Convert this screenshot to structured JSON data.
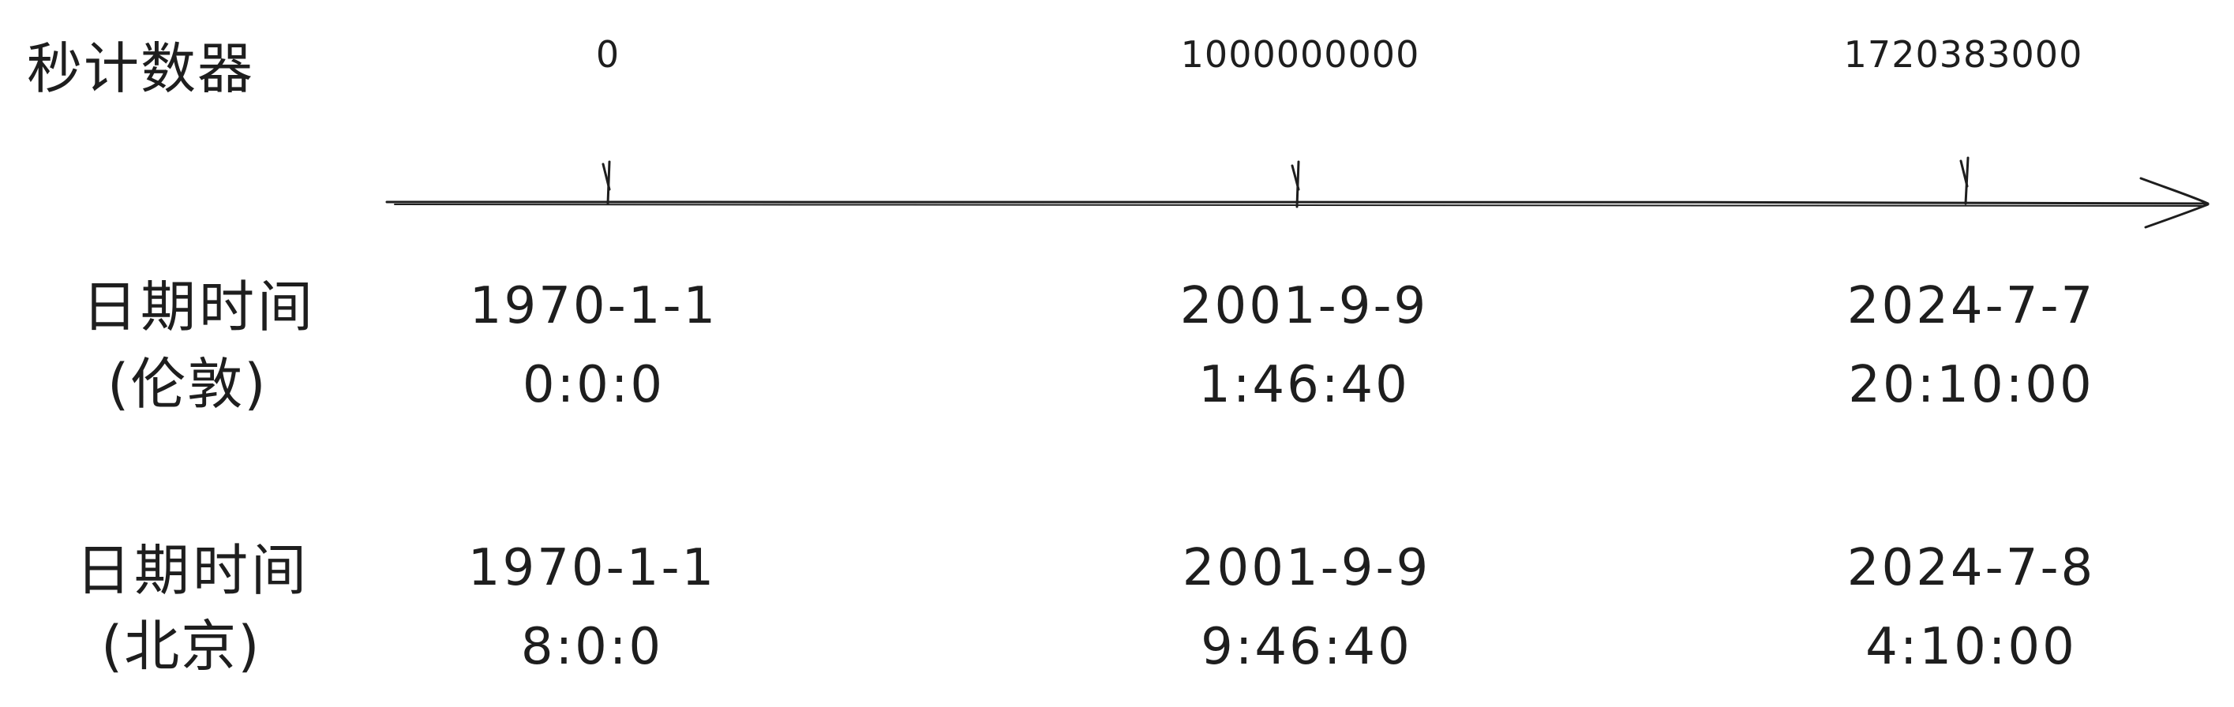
{
  "diagram": {
    "counter_label": "秒计数器",
    "row_london": {
      "title": "日期时间",
      "subtitle": "(伦敦)"
    },
    "row_beijing": {
      "title": "日期时间",
      "subtitle": "(北京)"
    },
    "ticks": [
      {
        "seconds": "0",
        "london_date": "1970-1-1",
        "london_time": "0:0:0",
        "beijing_date": "1970-1-1",
        "beijing_time": "8:0:0"
      },
      {
        "seconds": "1000000000",
        "london_date": "2001-9-9",
        "london_time": "1:46:40",
        "beijing_date": "2001-9-9",
        "beijing_time": "9:46:40"
      },
      {
        "seconds": "1720383000",
        "london_date": "2024-7-7",
        "london_time": "20:10:00",
        "beijing_date": "2024-7-8",
        "beijing_time": "4:10:00"
      }
    ],
    "line_color": "#1e1e1e"
  }
}
